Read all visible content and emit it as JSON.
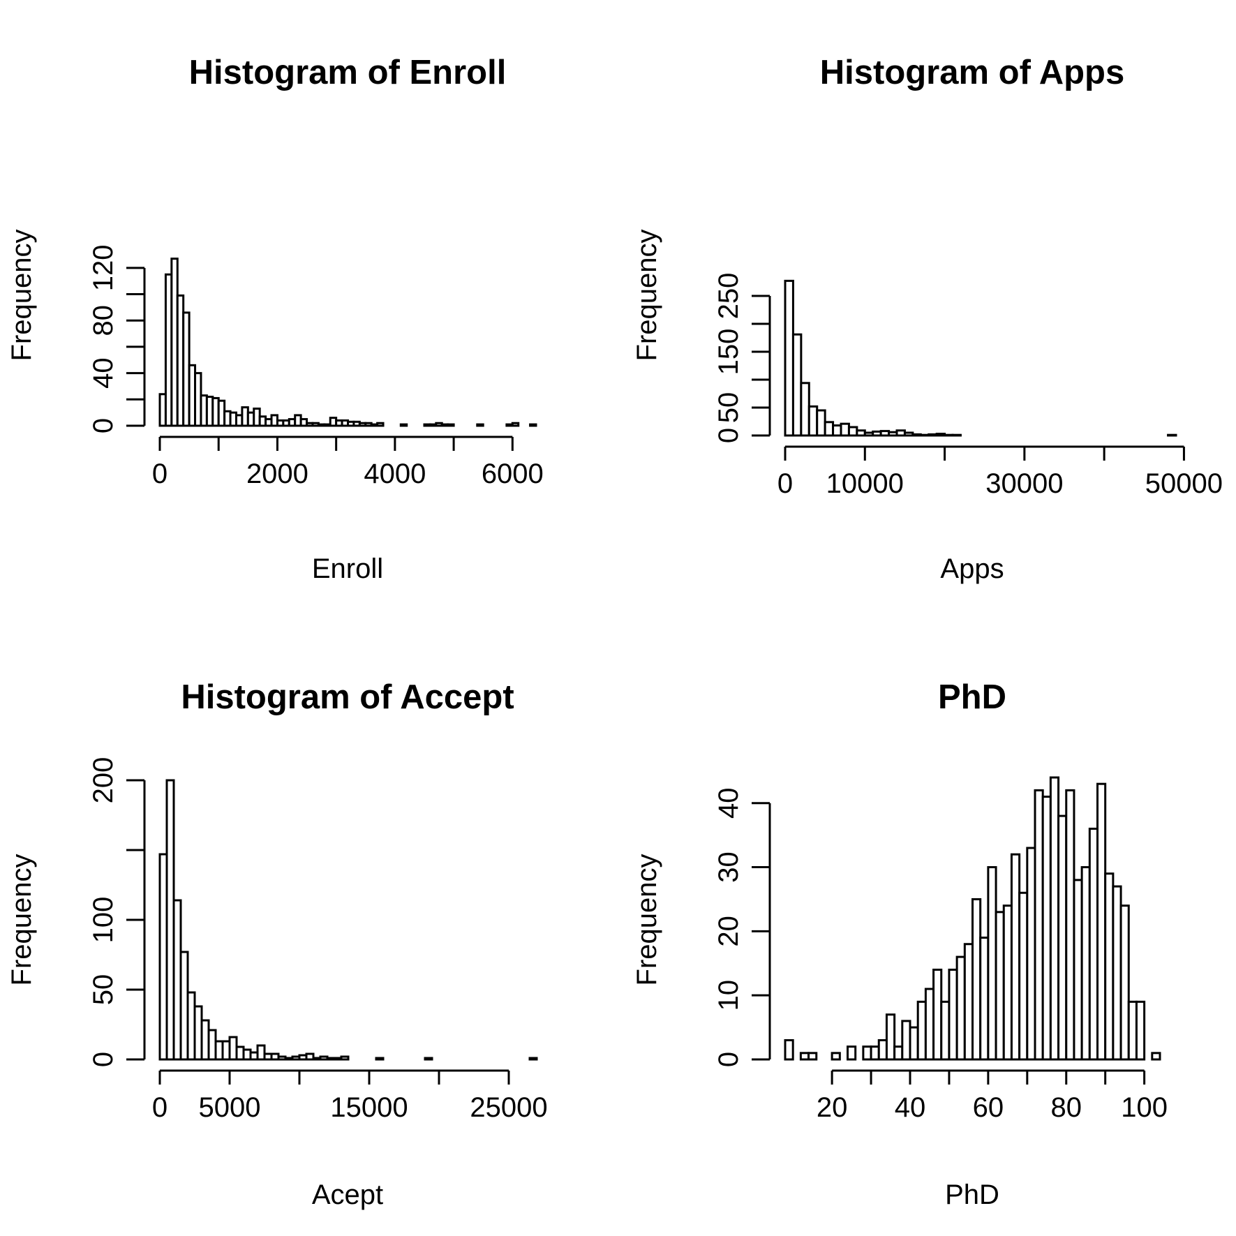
{
  "chart_data": [
    {
      "type": "bar",
      "title": "Histogram of Enroll",
      "xlabel": "Enroll",
      "ylabel": "Frequency",
      "bin_start": 0,
      "bin_width": 100,
      "values": [
        24,
        115,
        127,
        99,
        86,
        46,
        40,
        23,
        22,
        21,
        19,
        11,
        10,
        8,
        14,
        10,
        13,
        7,
        5,
        8,
        4,
        4,
        5,
        8,
        5,
        2,
        2,
        1,
        1,
        6,
        4,
        4,
        3,
        3,
        2,
        2,
        1,
        2,
        0,
        0,
        0,
        1,
        0,
        0,
        0,
        1,
        1,
        2,
        1,
        1,
        0,
        0,
        0,
        0,
        1,
        0,
        0,
        0,
        0,
        1,
        2,
        0,
        0,
        1,
        0
      ],
      "xlim": [
        0,
        6400
      ],
      "ylim": [
        0,
        130
      ],
      "xticks": [
        0,
        1000,
        2000,
        3000,
        4000,
        5000,
        6000
      ],
      "xtick_labels": [
        "0",
        "",
        "2000",
        "",
        "4000",
        "",
        "6000"
      ],
      "yticks": [
        0,
        20,
        40,
        60,
        80,
        100,
        120
      ],
      "ytick_labels": [
        "0",
        "",
        "40",
        "",
        "80",
        "",
        "120"
      ]
    },
    {
      "type": "bar",
      "title": "Histogram of Apps",
      "xlabel": "Apps",
      "ylabel": "Frequency",
      "bin_start": 0,
      "bin_width": 1000,
      "values": [
        277,
        181,
        94,
        52,
        45,
        24,
        18,
        21,
        15,
        9,
        5,
        7,
        8,
        6,
        9,
        5,
        2,
        1,
        2,
        3,
        1,
        1,
        0,
        0,
        0,
        0,
        0,
        0,
        0,
        0,
        0,
        0,
        0,
        0,
        0,
        0,
        0,
        0,
        0,
        0,
        0,
        0,
        0,
        0,
        0,
        0,
        0,
        0,
        1
      ],
      "xlim": [
        0,
        49000
      ],
      "ylim": [
        0,
        280
      ],
      "xticks": [
        0,
        10000,
        20000,
        30000,
        40000,
        50000
      ],
      "xtick_labels": [
        "0",
        "10000",
        "",
        "30000",
        "",
        "50000"
      ],
      "yticks": [
        0,
        50,
        100,
        150,
        200,
        250
      ],
      "ytick_labels": [
        "0",
        "50",
        "",
        "150",
        "",
        "250"
      ]
    },
    {
      "type": "bar",
      "title": "Histogram of Accept",
      "xlabel": "Acept",
      "ylabel": "Frequency",
      "bin_start": 0,
      "bin_width": 500,
      "values": [
        147,
        200,
        114,
        77,
        48,
        38,
        28,
        21,
        13,
        13,
        16,
        9,
        7,
        5,
        10,
        4,
        4,
        2,
        1,
        2,
        3,
        4,
        1,
        2,
        1,
        1,
        2,
        0,
        0,
        0,
        0,
        1,
        0,
        0,
        0,
        0,
        0,
        0,
        1,
        0,
        0,
        0,
        0,
        0,
        0,
        0,
        0,
        0,
        0,
        0,
        0,
        0,
        0,
        1
      ],
      "xlim": [
        0,
        27000
      ],
      "ylim": [
        0,
        200
      ],
      "xticks": [
        0,
        5000,
        10000,
        15000,
        20000,
        25000
      ],
      "xtick_labels": [
        "0",
        "5000",
        "",
        "15000",
        "",
        "25000"
      ],
      "yticks": [
        0,
        50,
        100,
        150,
        200
      ],
      "ytick_labels": [
        "0",
        "50",
        "100",
        "",
        "200"
      ]
    },
    {
      "type": "bar",
      "title": "PhD",
      "xlabel": "PhD",
      "ylabel": "Frequency",
      "bin_start": 8,
      "bin_width": 2,
      "values": [
        3,
        0,
        1,
        1,
        0,
        0,
        1,
        0,
        2,
        0,
        2,
        2,
        3,
        7,
        2,
        6,
        5,
        9,
        11,
        14,
        9,
        14,
        16,
        18,
        25,
        19,
        30,
        23,
        24,
        32,
        26,
        33,
        42,
        41,
        44,
        38,
        42,
        28,
        30,
        36,
        43,
        29,
        27,
        24,
        9,
        9,
        0,
        1
      ],
      "xlim": [
        8,
        104
      ],
      "ylim": [
        0,
        44
      ],
      "xticks": [
        20,
        30,
        40,
        50,
        60,
        70,
        80,
        90,
        100
      ],
      "xtick_labels": [
        "20",
        "",
        "40",
        "",
        "60",
        "",
        "80",
        "",
        "100"
      ],
      "yticks": [
        0,
        10,
        20,
        30,
        40
      ],
      "ytick_labels": [
        "0",
        "10",
        "20",
        "30",
        "40"
      ]
    }
  ]
}
